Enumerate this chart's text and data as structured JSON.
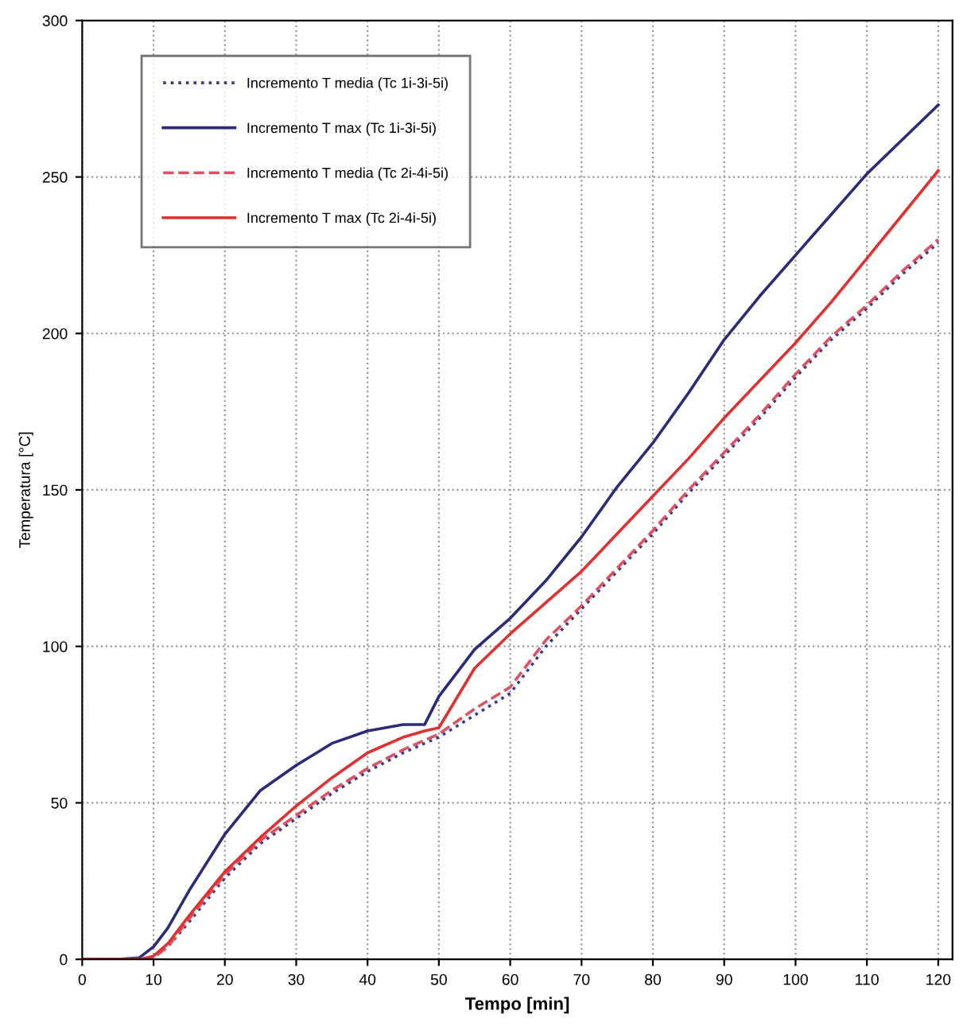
{
  "chart_data": {
    "type": "line",
    "xlabel": "Tempo [min]",
    "ylabel": "Temperatura [°C]",
    "x": [
      0,
      5,
      8,
      10,
      12,
      15,
      20,
      25,
      30,
      35,
      40,
      45,
      48,
      50,
      55,
      60,
      65,
      70,
      75,
      80,
      85,
      90,
      95,
      100,
      105,
      110,
      115,
      120
    ],
    "xlim": [
      0,
      122
    ],
    "xticks": [
      0,
      10,
      20,
      30,
      40,
      50,
      60,
      70,
      80,
      90,
      100,
      110,
      120
    ],
    "ylim": [
      0,
      300
    ],
    "yticks": [
      0,
      50,
      100,
      150,
      200,
      250,
      300
    ],
    "grid": true,
    "legend": "top left",
    "marker": "none",
    "series": [
      {
        "name": "Incremento T media (Tc 1i-3i-5i)",
        "color": "#3a3a8a",
        "line_style": "dotted",
        "values": [
          0,
          0,
          0,
          0.5,
          4,
          12,
          26,
          37,
          45,
          53,
          60,
          66,
          69,
          71,
          78,
          85,
          100,
          112,
          124,
          136,
          149,
          161,
          173,
          186,
          198,
          208,
          219,
          229
        ]
      },
      {
        "name": "Incremento T max (Tc 1i-3i-5i)",
        "color": "#2b2b7a",
        "line_style": "solid",
        "values": [
          0,
          0,
          0.5,
          4,
          10,
          22,
          40,
          54,
          62,
          69,
          73,
          75,
          75,
          84,
          99,
          109,
          121,
          135,
          151,
          165,
          181,
          198,
          212,
          225,
          238,
          251,
          262,
          273
        ]
      },
      {
        "name": "Incremento T media (Tc 2i-4i-5i)",
        "color": "#e05060",
        "line_style": "dashed",
        "values": [
          0,
          0,
          0,
          0.5,
          4,
          13,
          27,
          38,
          46,
          54,
          61,
          67,
          70,
          72,
          80,
          87,
          102,
          113,
          125,
          137,
          150,
          162,
          174,
          187,
          199,
          209,
          220,
          230
        ]
      },
      {
        "name": "Incremento T max (Tc 2i-4i-5i)",
        "color": "#e03030",
        "line_style": "solid",
        "values": [
          0,
          0,
          0,
          1,
          5,
          14,
          28,
          39,
          49,
          58,
          66,
          71,
          73,
          74,
          93,
          104,
          114,
          124,
          136,
          148,
          160,
          173,
          185,
          197,
          210,
          224,
          238,
          252
        ]
      }
    ]
  }
}
